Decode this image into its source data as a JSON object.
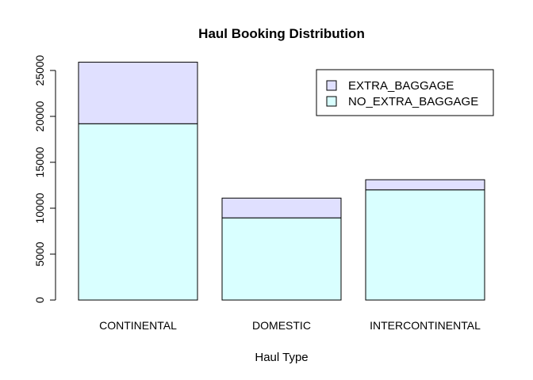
{
  "chart_data": {
    "type": "bar",
    "stacked": true,
    "title": "Haul Booking Distribution",
    "xlabel": "Haul Type",
    "ylabel": "",
    "ylim": [
      0,
      25000
    ],
    "yticks": [
      0,
      5000,
      10000,
      15000,
      20000,
      25000
    ],
    "categories": [
      "CONTINENTAL",
      "DOMESTIC",
      "INTERCONTINENTAL"
    ],
    "series": [
      {
        "name": "NO_EXTRA_BAGGAGE",
        "values": [
          19200,
          8950,
          12000
        ],
        "color": "#d9ffff"
      },
      {
        "name": "EXTRA_BAGGAGE",
        "values": [
          6700,
          2150,
          1100
        ],
        "color": "#e0e0ff"
      }
    ],
    "legend": {
      "position": "top-right",
      "items": [
        "EXTRA_BAGGAGE",
        "NO_EXTRA_BAGGAGE"
      ]
    },
    "grid": false
  }
}
